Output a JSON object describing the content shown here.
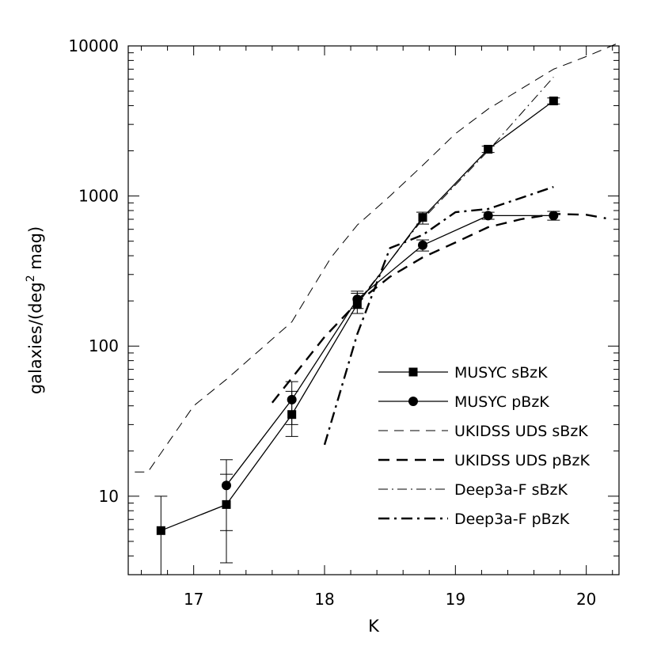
{
  "chart_data": {
    "type": "line",
    "xlabel": "K",
    "ylabel": "galaxies/(deg² mag)",
    "ylabel_parts": {
      "pre": "galaxies/(deg",
      "sup": "2",
      "post": " mag)"
    },
    "xlim": [
      16.5,
      20.25
    ],
    "ylim": [
      3,
      10000
    ],
    "yscale": "log",
    "grid": false,
    "legend_position": "center-right",
    "x_ticks": [
      17,
      18,
      19,
      20
    ],
    "x_tick_labels": [
      "17",
      "18",
      "19",
      "20"
    ],
    "y_ticks": [
      10,
      100,
      1000,
      10000
    ],
    "y_tick_labels": [
      "10",
      "100",
      "1000",
      "10000"
    ],
    "series": [
      {
        "name": "MUSYC sBzK",
        "style": "solid",
        "width": 1.3,
        "marker": "square",
        "x": [
          16.75,
          17.25,
          17.75,
          18.25,
          18.75,
          19.25,
          19.75
        ],
        "y": [
          5.9,
          8.8,
          35,
          190,
          720,
          2050,
          4300
        ],
        "yerr_low": [
          0,
          3.6,
          25,
          165,
          650,
          1950,
          4100
        ],
        "yerr_high": [
          10,
          14,
          50,
          225,
          780,
          2150,
          4500
        ]
      },
      {
        "name": "MUSYC pBzK",
        "style": "solid",
        "width": 1.3,
        "marker": "circle",
        "x": [
          17.25,
          17.75,
          18.25,
          18.75,
          19.25,
          19.75
        ],
        "y": [
          11.8,
          44,
          205,
          470,
          740,
          740
        ],
        "yerr_low": [
          5.9,
          30,
          178,
          430,
          700,
          690
        ],
        "yerr_high": [
          17.5,
          58,
          232,
          510,
          780,
          790
        ]
      },
      {
        "name": "UKIDSS UDS sBzK",
        "style": "dashed",
        "width": 1,
        "marker": "none",
        "x": [
          16.55,
          16.65,
          17.0,
          17.25,
          17.75,
          18.05,
          18.25,
          18.5,
          18.75,
          19.0,
          19.25,
          19.75,
          20.0,
          20.25
        ],
        "y": [
          14.5,
          14.5,
          40,
          60,
          145,
          390,
          640,
          1000,
          1600,
          2600,
          3800,
          7000,
          8500,
          10500
        ]
      },
      {
        "name": "UKIDSS UDS pBzK",
        "style": "dashed",
        "width": 2.4,
        "marker": "none",
        "x": [
          17.6,
          18.0,
          18.25,
          18.5,
          18.75,
          19.0,
          19.25,
          19.5,
          19.75,
          20.0,
          20.15
        ],
        "y": [
          42,
          115,
          195,
          290,
          390,
          490,
          620,
          700,
          760,
          750,
          710
        ]
      },
      {
        "name": "Deep3a-F sBzK",
        "style": "dashdot",
        "width": 1,
        "marker": "none",
        "x": [
          18.25,
          18.75,
          19.25,
          19.75
        ],
        "y": [
          195,
          700,
          2000,
          6200
        ]
      },
      {
        "name": "Deep3a-F pBzK",
        "style": "dashdot",
        "width": 2.4,
        "marker": "none",
        "x": [
          18.0,
          18.25,
          18.5,
          18.75,
          19.0,
          19.25,
          19.5,
          19.75
        ],
        "y": [
          22,
          120,
          450,
          550,
          780,
          820,
          970,
          1150
        ]
      }
    ]
  }
}
